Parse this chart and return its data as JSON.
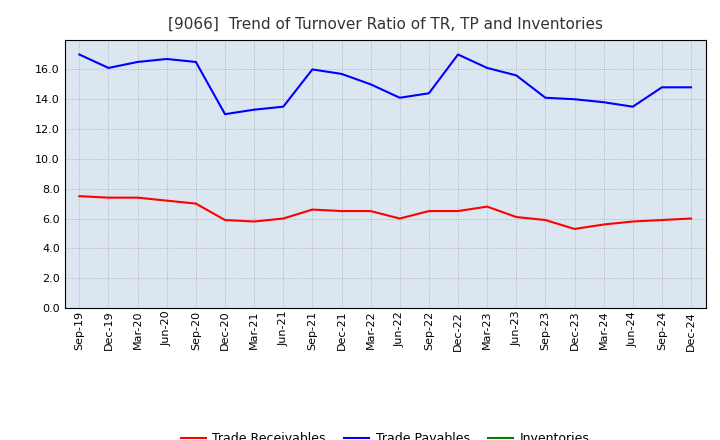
{
  "title": "[9066]  Trend of Turnover Ratio of TR, TP and Inventories",
  "x_labels": [
    "Sep-19",
    "Dec-19",
    "Mar-20",
    "Jun-20",
    "Sep-20",
    "Dec-20",
    "Mar-21",
    "Jun-21",
    "Sep-21",
    "Dec-21",
    "Mar-22",
    "Jun-22",
    "Sep-22",
    "Dec-22",
    "Mar-23",
    "Jun-23",
    "Sep-23",
    "Dec-23",
    "Mar-24",
    "Jun-24",
    "Sep-24",
    "Dec-24"
  ],
  "trade_receivables": [
    7.5,
    7.4,
    7.4,
    7.2,
    7.0,
    5.9,
    5.8,
    6.0,
    6.6,
    6.5,
    6.5,
    6.0,
    6.5,
    6.5,
    6.8,
    6.1,
    5.9,
    5.3,
    5.6,
    5.8,
    5.9,
    6.0
  ],
  "trade_payables": [
    17.0,
    16.1,
    16.5,
    16.7,
    16.5,
    13.0,
    13.3,
    13.5,
    16.0,
    15.7,
    15.0,
    14.1,
    14.4,
    17.0,
    16.1,
    15.6,
    14.1,
    14.0,
    13.8,
    13.5,
    14.8,
    14.8
  ],
  "inventories": [
    null,
    null,
    null,
    null,
    null,
    null,
    null,
    null,
    null,
    null,
    null,
    null,
    null,
    null,
    null,
    null,
    null,
    null,
    null,
    null,
    null,
    null
  ],
  "tr_color": "#ff0000",
  "tp_color": "#0000ff",
  "inv_color": "#008000",
  "ylim": [
    0,
    18
  ],
  "yticks": [
    0.0,
    2.0,
    4.0,
    6.0,
    8.0,
    10.0,
    12.0,
    14.0,
    16.0
  ],
  "axes_bg_color": "#dce6f0",
  "background_color": "#ffffff",
  "grid_color": "#999999",
  "title_fontsize": 11,
  "tick_fontsize": 8,
  "legend_labels": [
    "Trade Receivables",
    "Trade Payables",
    "Inventories"
  ]
}
